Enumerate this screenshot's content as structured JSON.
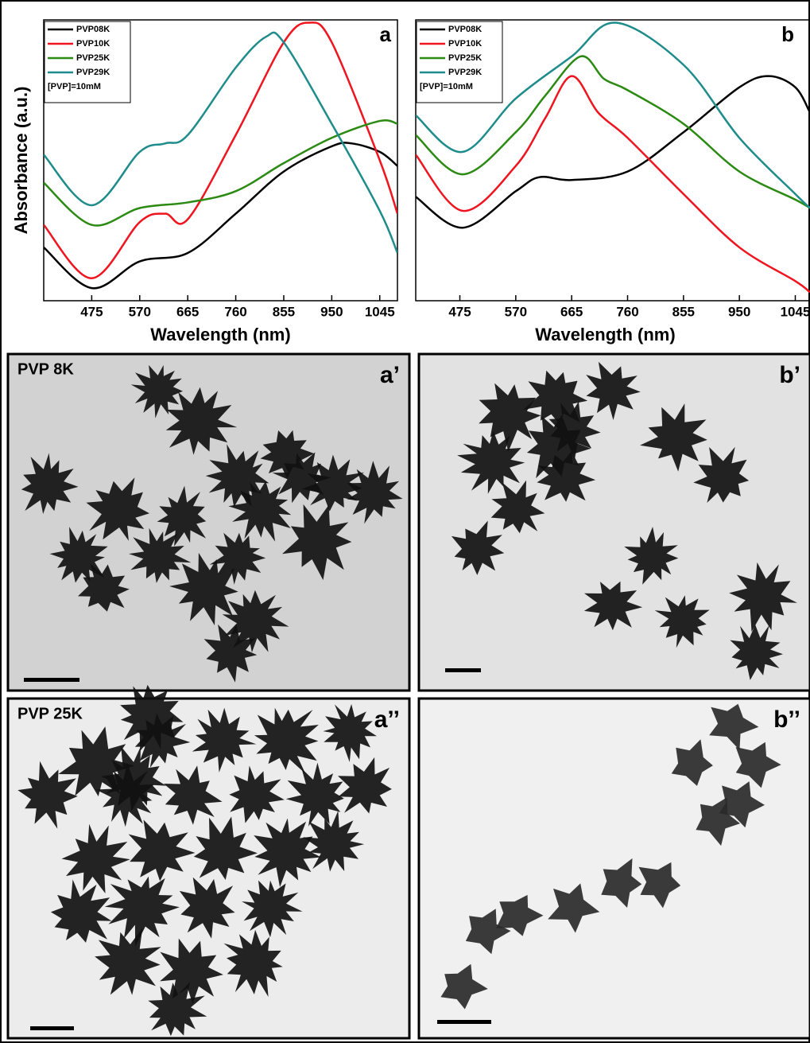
{
  "chart_data": [
    {
      "type": "line",
      "panel_label": "a",
      "x_label": "Wavelength (nm)",
      "y_label": "Absorbance (a.u.)",
      "annotation": "[PVP]=10mM",
      "xlim": [
        380,
        1080
      ],
      "xticks": [
        475,
        570,
        665,
        760,
        855,
        950,
        1045
      ],
      "ylim": [
        0,
        1
      ],
      "series": [
        {
          "name": "PVP08K",
          "color": "#000000",
          "x": [
            380,
            475,
            570,
            665,
            760,
            855,
            950,
            990,
            1045,
            1080
          ],
          "values": [
            0.19,
            0.045,
            0.14,
            0.17,
            0.31,
            0.46,
            0.55,
            0.56,
            0.53,
            0.48
          ]
        },
        {
          "name": "PVP10K",
          "color": "#f0141e",
          "x": [
            380,
            475,
            570,
            620,
            665,
            760,
            855,
            905,
            950,
            1045,
            1080
          ],
          "values": [
            0.27,
            0.08,
            0.28,
            0.31,
            0.29,
            0.59,
            0.92,
            0.99,
            0.92,
            0.5,
            0.31
          ]
        },
        {
          "name": "PVP25K",
          "color": "#2a8a12",
          "x": [
            380,
            475,
            570,
            665,
            760,
            855,
            950,
            1045,
            1080
          ],
          "values": [
            0.42,
            0.27,
            0.33,
            0.35,
            0.39,
            0.49,
            0.58,
            0.64,
            0.63
          ]
        },
        {
          "name": "PVP29K",
          "color": "#1f8c8c",
          "x": [
            380,
            475,
            570,
            620,
            665,
            760,
            820,
            855,
            950,
            1045,
            1080
          ],
          "values": [
            0.52,
            0.34,
            0.53,
            0.56,
            0.59,
            0.83,
            0.94,
            0.92,
            0.63,
            0.32,
            0.17
          ]
        }
      ]
    },
    {
      "type": "line",
      "panel_label": "b",
      "x_label": "Wavelength (nm)",
      "annotation": "[PVP]=10mM",
      "xlim": [
        400,
        1070
      ],
      "xticks": [
        475,
        570,
        665,
        760,
        855,
        950,
        1045
      ],
      "ylim": [
        0,
        1
      ],
      "series": [
        {
          "name": "PVP08K",
          "color": "#000000",
          "x": [
            400,
            480,
            570,
            610,
            665,
            760,
            855,
            950,
            1000,
            1045,
            1070
          ],
          "values": [
            0.37,
            0.26,
            0.39,
            0.44,
            0.43,
            0.46,
            0.6,
            0.76,
            0.8,
            0.76,
            0.67
          ]
        },
        {
          "name": "PVP10K",
          "color": "#f0141e",
          "x": [
            400,
            480,
            570,
            620,
            665,
            710,
            760,
            855,
            950,
            1045,
            1070
          ],
          "values": [
            0.52,
            0.32,
            0.48,
            0.65,
            0.8,
            0.67,
            0.58,
            0.38,
            0.19,
            0.07,
            0.03
          ]
        },
        {
          "name": "PVP25K",
          "color": "#2a8a12",
          "x": [
            400,
            480,
            570,
            620,
            680,
            720,
            760,
            855,
            950,
            1045,
            1070
          ],
          "values": [
            0.59,
            0.45,
            0.6,
            0.73,
            0.87,
            0.79,
            0.75,
            0.63,
            0.46,
            0.36,
            0.33
          ]
        },
        {
          "name": "PVP29K",
          "color": "#1f8c8c",
          "x": [
            400,
            480,
            570,
            665,
            740,
            855,
            950,
            1045,
            1070
          ],
          "values": [
            0.66,
            0.53,
            0.72,
            0.87,
            0.99,
            0.84,
            0.58,
            0.38,
            0.33
          ]
        }
      ]
    }
  ],
  "images": [
    {
      "label": "PVP 8K",
      "panel": "a’"
    },
    {
      "panel": "b’"
    },
    {
      "label": "PVP 25K",
      "panel": "a’’"
    },
    {
      "panel": "b’’"
    }
  ]
}
